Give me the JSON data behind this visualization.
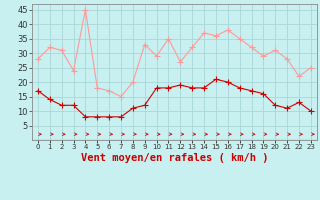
{
  "title": "",
  "xlabel": "Vent moyen/en rafales ( km/h )",
  "background_color": "#c8f0f0",
  "grid_color": "#a8d8d8",
  "x_values": [
    0,
    1,
    2,
    3,
    4,
    5,
    6,
    7,
    8,
    9,
    10,
    11,
    12,
    13,
    14,
    15,
    16,
    17,
    18,
    19,
    20,
    21,
    22,
    23
  ],
  "wind_avg": [
    17,
    14,
    12,
    12,
    8,
    8,
    8,
    8,
    11,
    12,
    18,
    18,
    19,
    18,
    18,
    21,
    20,
    18,
    17,
    16,
    12,
    11,
    13,
    10
  ],
  "wind_gust": [
    28,
    32,
    31,
    24,
    45,
    18,
    17,
    15,
    20,
    33,
    29,
    35,
    27,
    32,
    37,
    36,
    38,
    35,
    32,
    29,
    31,
    28,
    22,
    25
  ],
  "avg_color": "#cc0000",
  "gust_color": "#ff9999",
  "ylim": [
    0,
    47
  ],
  "yticks": [
    5,
    10,
    15,
    20,
    25,
    30,
    35,
    40,
    45
  ],
  "xticks": [
    0,
    1,
    2,
    3,
    4,
    5,
    6,
    7,
    8,
    9,
    10,
    11,
    12,
    13,
    14,
    15,
    16,
    17,
    18,
    19,
    20,
    21,
    22,
    23
  ],
  "marker_size": 3,
  "line_width": 0.8,
  "xlabel_color": "#cc0000",
  "xlabel_fontsize": 7.5
}
